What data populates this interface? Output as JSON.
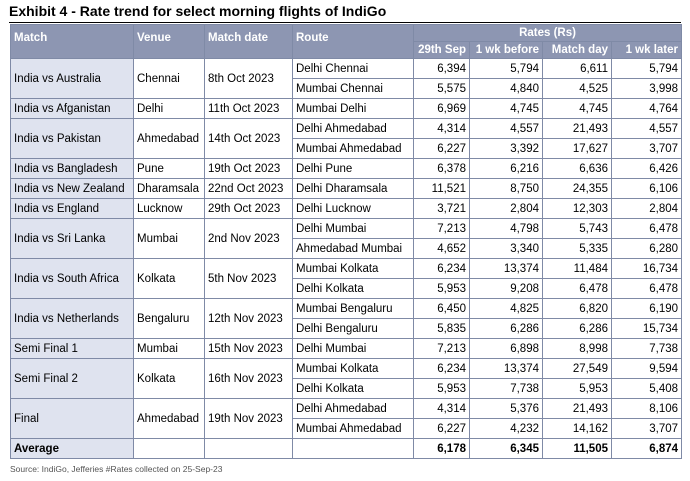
{
  "title": "Exhibit 4 - Rate trend for select morning flights of IndiGo",
  "headers": {
    "match": "Match",
    "venue": "Venue",
    "match_date": "Match date",
    "route": "Route",
    "rates_group": "Rates (Rs)",
    "c1": "29th Sep",
    "c2": "1 wk before",
    "c3": "Match day",
    "c4": "1 wk later"
  },
  "groups": [
    {
      "match": "India vs Australia",
      "venue": "Chennai",
      "date": "8th Oct 2023",
      "routes": [
        {
          "route": "Delhi Chennai",
          "values": [
            "6,394",
            "5,794",
            "6,611",
            "5,794"
          ]
        },
        {
          "route": "Mumbai Chennai",
          "values": [
            "5,575",
            "4,840",
            "4,525",
            "3,998"
          ]
        }
      ]
    },
    {
      "match": "India vs Afganistan",
      "venue": "Delhi",
      "date": "11th Oct 2023",
      "routes": [
        {
          "route": "Mumbai Delhi",
          "values": [
            "6,969",
            "4,745",
            "4,745",
            "4,764"
          ]
        }
      ]
    },
    {
      "match": "India vs Pakistan",
      "venue": "Ahmedabad",
      "date": "14th Oct 2023",
      "routes": [
        {
          "route": "Delhi Ahmedabad",
          "values": [
            "4,314",
            "4,557",
            "21,493",
            "4,557"
          ]
        },
        {
          "route": "Mumbai Ahmedabad",
          "values": [
            "6,227",
            "3,392",
            "17,627",
            "3,707"
          ]
        }
      ]
    },
    {
      "match": "India vs Bangladesh",
      "venue": "Pune",
      "date": "19th Oct 2023",
      "routes": [
        {
          "route": "Delhi Pune",
          "values": [
            "6,378",
            "6,216",
            "6,636",
            "6,426"
          ]
        }
      ]
    },
    {
      "match": "India vs New Zealand",
      "venue": "Dharamsala",
      "date": "22nd Oct 2023",
      "routes": [
        {
          "route": "Delhi Dharamsala",
          "values": [
            "11,521",
            "8,750",
            "24,355",
            "6,106"
          ]
        }
      ]
    },
    {
      "match": "India vs England",
      "venue": "Lucknow",
      "date": "29th Oct 2023",
      "routes": [
        {
          "route": "Delhi Lucknow",
          "values": [
            "3,721",
            "2,804",
            "12,303",
            "2,804"
          ]
        }
      ]
    },
    {
      "match": "India vs Sri Lanka",
      "venue": "Mumbai",
      "date": "2nd Nov 2023",
      "routes": [
        {
          "route": "Delhi Mumbai",
          "values": [
            "7,213",
            "4,798",
            "5,743",
            "6,478"
          ]
        },
        {
          "route": "Ahmedabad Mumbai",
          "values": [
            "4,652",
            "3,340",
            "5,335",
            "6,280"
          ]
        }
      ]
    },
    {
      "match": "India vs South Africa",
      "venue": "Kolkata",
      "date": "5th Nov 2023",
      "routes": [
        {
          "route": "Mumbai Kolkata",
          "values": [
            "6,234",
            "13,374",
            "11,484",
            "16,734"
          ]
        },
        {
          "route": "Delhi Kolkata",
          "values": [
            "5,953",
            "9,208",
            "6,478",
            "6,478"
          ]
        }
      ]
    },
    {
      "match": "India vs Netherlands",
      "venue": "Bengaluru",
      "date": "12th Nov 2023",
      "routes": [
        {
          "route": "Mumbai Bengaluru",
          "values": [
            "6,450",
            "4,825",
            "6,820",
            "6,190"
          ]
        },
        {
          "route": "Delhi Bengaluru",
          "values": [
            "5,835",
            "6,286",
            "6,286",
            "15,734"
          ]
        }
      ]
    },
    {
      "match": "Semi Final 1",
      "venue": "Mumbai",
      "date": "15th Nov 2023",
      "routes": [
        {
          "route": "Delhi Mumbai",
          "values": [
            "7,213",
            "6,898",
            "8,998",
            "7,738"
          ]
        }
      ]
    },
    {
      "match": "Semi Final 2",
      "venue": "Kolkata",
      "date": "16th Nov 2023",
      "routes": [
        {
          "route": "Mumbai Kolkata",
          "values": [
            "6,234",
            "13,374",
            "27,549",
            "9,594"
          ]
        },
        {
          "route": "Delhi Kolkata",
          "values": [
            "5,953",
            "7,738",
            "5,953",
            "5,408"
          ]
        }
      ]
    },
    {
      "match": "Final",
      "venue": "Ahmedabad",
      "date": "19th Nov 2023",
      "routes": [
        {
          "route": "Delhi Ahmedabad",
          "values": [
            "4,314",
            "5,376",
            "21,493",
            "8,106"
          ]
        },
        {
          "route": "Mumbai Ahmedabad",
          "values": [
            "6,227",
            "4,232",
            "14,162",
            "3,707"
          ]
        }
      ]
    }
  ],
  "average": {
    "label": "Average",
    "values": [
      "6,178",
      "6,345",
      "11,505",
      "6,874"
    ]
  },
  "source": "Source: IndiGo, Jefferies #Rates collected on 25-Sep-23"
}
